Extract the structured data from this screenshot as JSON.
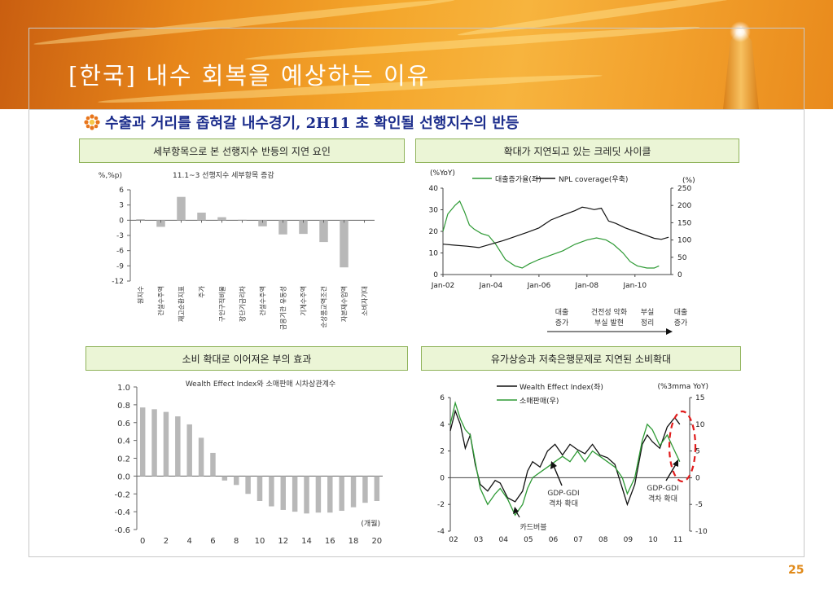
{
  "slide": {
    "title": "[한국] 내수 회복을 예상하는 이유",
    "subtitle": "수출과 거리를 좁혀갈 내수경기, 2H11 초 확인될 선행지수의 반등",
    "page_number": "25"
  },
  "panels": {
    "top_left": {
      "header": "세부항목으로 본 선행지수 반등의 지연 요인"
    },
    "top_right": {
      "header": "확대가 지연되고 있는 크레딧 사이클"
    },
    "bottom_left": {
      "header": "소비 확대로 이어져온 부의 효과"
    },
    "bottom_right": {
      "header": "유가상승과 저축은행문제로 지연된 소비확대"
    }
  },
  "chart_data": [
    {
      "type": "bar",
      "unit_label": "(%,%p)",
      "title": "11.1~3 선행지수 세부항목 증감",
      "categories": [
        "원지수",
        "건설수주액",
        "재고순환지표",
        "주가",
        "구인구직비율",
        "장단기금리차",
        "건설수주액",
        "금융기관 유동성",
        "기계수주액",
        "순상품교역조건",
        "자본재수입액",
        "소비자기대"
      ],
      "values": [
        0.2,
        -1.3,
        4.6,
        1.5,
        0.6,
        0.1,
        -1.2,
        -2.8,
        -2.7,
        -4.3,
        -9.3,
        0
      ],
      "ylim": [
        -12,
        6
      ],
      "yticks": [
        "6",
        "3",
        "0",
        "-3",
        "-6",
        "-9",
        "-12"
      ],
      "ytick_values": [
        6,
        3,
        0,
        -3,
        -6,
        -9,
        -12
      ],
      "color": "#b8b8b8"
    },
    {
      "type": "line",
      "left_unit": "(%YoY)",
      "right_unit": "(%)",
      "xticks": [
        "Jan-02",
        "Jan-04",
        "Jan-06",
        "Jan-08",
        "Jan-10"
      ],
      "x_range": [
        2002,
        2011.5
      ],
      "xtick_values": [
        2002,
        2004,
        2006,
        2008,
        2010
      ],
      "y_left_range": [
        0,
        40
      ],
      "y_left_ticks": [
        "40",
        "30",
        "20",
        "10",
        "0"
      ],
      "y_left_tick_values": [
        40,
        30,
        20,
        10,
        0
      ],
      "y_right_range": [
        0,
        250
      ],
      "y_right_ticks": [
        "250",
        "200",
        "150",
        "100",
        "50",
        "0"
      ],
      "y_right_tick_values": [
        250,
        200,
        150,
        100,
        50,
        0
      ],
      "series": [
        {
          "name": "대출증가율(좌)",
          "axis": "left",
          "color": "#2e9a35",
          "x": [
            2002.0,
            2002.2,
            2002.5,
            2002.7,
            2002.9,
            2003.1,
            2003.3,
            2003.6,
            2003.9,
            2004.2,
            2004.6,
            2005.0,
            2005.3,
            2005.6,
            2006.0,
            2006.5,
            2007.0,
            2007.5,
            2008.0,
            2008.4,
            2008.8,
            2009.1,
            2009.5,
            2009.8,
            2010.1,
            2010.5,
            2010.8,
            2011.0
          ],
          "y": [
            20,
            28,
            32,
            34,
            29,
            23,
            21,
            19,
            18,
            14,
            7,
            4,
            3,
            5,
            7,
            9,
            11,
            14,
            16,
            17,
            16,
            14,
            10,
            6,
            4,
            3,
            3,
            4
          ]
        },
        {
          "name": "NPL coverage(우축)",
          "axis": "right",
          "color": "#111111",
          "x": [
            2002.0,
            2002.5,
            2003.0,
            2003.5,
            2004.0,
            2004.5,
            2005.0,
            2005.5,
            2006.0,
            2006.5,
            2007.0,
            2007.5,
            2007.8,
            2008.0,
            2008.3,
            2008.6,
            2008.9,
            2009.2,
            2009.6,
            2010.0,
            2010.4,
            2010.8,
            2011.1,
            2011.4
          ],
          "y": [
            88,
            85,
            82,
            78,
            88,
            98,
            110,
            122,
            135,
            158,
            172,
            185,
            195,
            193,
            188,
            192,
            155,
            148,
            135,
            125,
            115,
            105,
            102,
            108
          ]
        }
      ],
      "cycle_labels": [
        {
          "label": "대출\n증가"
        },
        {
          "label": "건전성 악화\n부실 발현"
        },
        {
          "label": "부실\n정리"
        },
        {
          "label": "대출\n증가"
        }
      ]
    },
    {
      "type": "bar",
      "title": "Wealth Effect Index와 소매판매 시차상관계수",
      "unit_label": "(개월)",
      "x": [
        0,
        1,
        2,
        3,
        4,
        5,
        6,
        7,
        8,
        9,
        10,
        11,
        12,
        13,
        14,
        15,
        16,
        17,
        18,
        19,
        20
      ],
      "values": [
        0.77,
        0.75,
        0.72,
        0.67,
        0.58,
        0.43,
        0.26,
        -0.05,
        -0.1,
        -0.2,
        -0.28,
        -0.34,
        -0.38,
        -0.4,
        -0.42,
        -0.41,
        -0.41,
        -0.39,
        -0.35,
        -0.3,
        -0.28
      ],
      "ylim": [
        -0.6,
        1.0
      ],
      "yticks": [
        "1.0",
        "0.8",
        "0.6",
        "0.4",
        "0.2",
        "0.0",
        "-0.2",
        "-0.4",
        "-0.6"
      ],
      "ytick_values": [
        1.0,
        0.8,
        0.6,
        0.4,
        0.2,
        0.0,
        -0.2,
        -0.4,
        -0.6
      ],
      "xticks": [
        "0",
        "2",
        "4",
        "6",
        "8",
        "10",
        "12",
        "14",
        "16",
        "18",
        "20"
      ],
      "xtick_values": [
        0,
        2,
        4,
        6,
        8,
        10,
        12,
        14,
        16,
        18,
        20
      ],
      "color": "#b8b8b8"
    },
    {
      "type": "line",
      "right_unit": "(%3mma YoY)",
      "x_range": [
        2002,
        2011.6
      ],
      "xticks": [
        "02",
        "03",
        "04",
        "05",
        "06",
        "07",
        "08",
        "09",
        "10",
        "11"
      ],
      "xtick_values": [
        2002,
        2003,
        2004,
        2005,
        2006,
        2007,
        2008,
        2009,
        2010,
        2011
      ],
      "y_left_range": [
        -4,
        6
      ],
      "y_left_ticks": [
        "6",
        "4",
        "2",
        "0",
        "-2",
        "-4"
      ],
      "y_left_tick_values": [
        6,
        4,
        2,
        0,
        -2,
        -4
      ],
      "y_right_range": [
        -10,
        15
      ],
      "y_right_ticks": [
        "15",
        "10",
        "5",
        "0",
        "-5",
        "-10"
      ],
      "y_right_tick_values": [
        15,
        10,
        5,
        0,
        -5,
        -10
      ],
      "series": [
        {
          "name": "Wealth Effect Index(좌)",
          "axis": "left",
          "color": "#111111",
          "x": [
            2002.0,
            2002.2,
            2002.4,
            2002.6,
            2002.8,
            2003.0,
            2003.2,
            2003.5,
            2003.8,
            2004.0,
            2004.3,
            2004.6,
            2004.9,
            2005.1,
            2005.3,
            2005.6,
            2005.9,
            2006.2,
            2006.5,
            2006.8,
            2007.1,
            2007.4,
            2007.7,
            2008.0,
            2008.3,
            2008.6,
            2008.9,
            2009.1,
            2009.4,
            2009.7,
            2009.9,
            2010.1,
            2010.4,
            2010.7,
            2011.0,
            2011.2
          ],
          "y": [
            3.5,
            5.0,
            4.0,
            2.2,
            3.2,
            1.0,
            -0.5,
            -1.0,
            -0.2,
            -0.4,
            -1.5,
            -1.8,
            -1.0,
            0.5,
            1.2,
            0.8,
            2.0,
            2.5,
            1.7,
            2.5,
            2.1,
            1.8,
            2.5,
            1.7,
            1.5,
            1.0,
            -0.8,
            -2.0,
            -0.5,
            2.5,
            3.2,
            2.7,
            2.2,
            3.8,
            4.5,
            4.0
          ]
        },
        {
          "name": "소매판매(우)",
          "axis": "right",
          "color": "#2e9a35",
          "x": [
            2002.0,
            2002.2,
            2002.4,
            2002.6,
            2002.8,
            2003.0,
            2003.2,
            2003.5,
            2003.8,
            2004.0,
            2004.3,
            2004.6,
            2004.9,
            2005.1,
            2005.3,
            2005.6,
            2005.9,
            2006.2,
            2006.5,
            2006.8,
            2007.1,
            2007.4,
            2007.7,
            2008.0,
            2008.3,
            2008.6,
            2008.9,
            2009.1,
            2009.4,
            2009.7,
            2009.9,
            2010.1,
            2010.4,
            2010.7,
            2011.0,
            2011.2
          ],
          "y": [
            10,
            14,
            11,
            9,
            8,
            3,
            -2,
            -5,
            -3,
            -2,
            -4,
            -7,
            -5,
            -2,
            0,
            1,
            2,
            3,
            4,
            3,
            5,
            3,
            5,
            4,
            3,
            2,
            0,
            -3,
            0,
            7,
            10,
            9,
            6,
            8,
            5,
            3
          ]
        }
      ],
      "annotations": [
        {
          "label": "GDP-GDI\n격차 확대"
        },
        {
          "label": "GDP-GDI\n격차 확대"
        },
        {
          "label": "카드버블"
        }
      ]
    }
  ]
}
